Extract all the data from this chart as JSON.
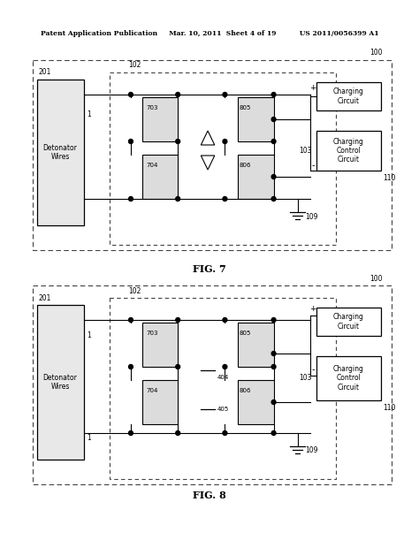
{
  "header_left": "Patent Application Publication",
  "header_center": "Mar. 10, 2011  Sheet 4 of 19",
  "header_right": "US 2011/0056399 A1",
  "fig7_label": "FIG. 7",
  "fig8_label": "FIG. 8",
  "background_color": "#ffffff",
  "line_color": "#000000",
  "box_fill": "#f0f0f0",
  "dashed_color": "#555555"
}
